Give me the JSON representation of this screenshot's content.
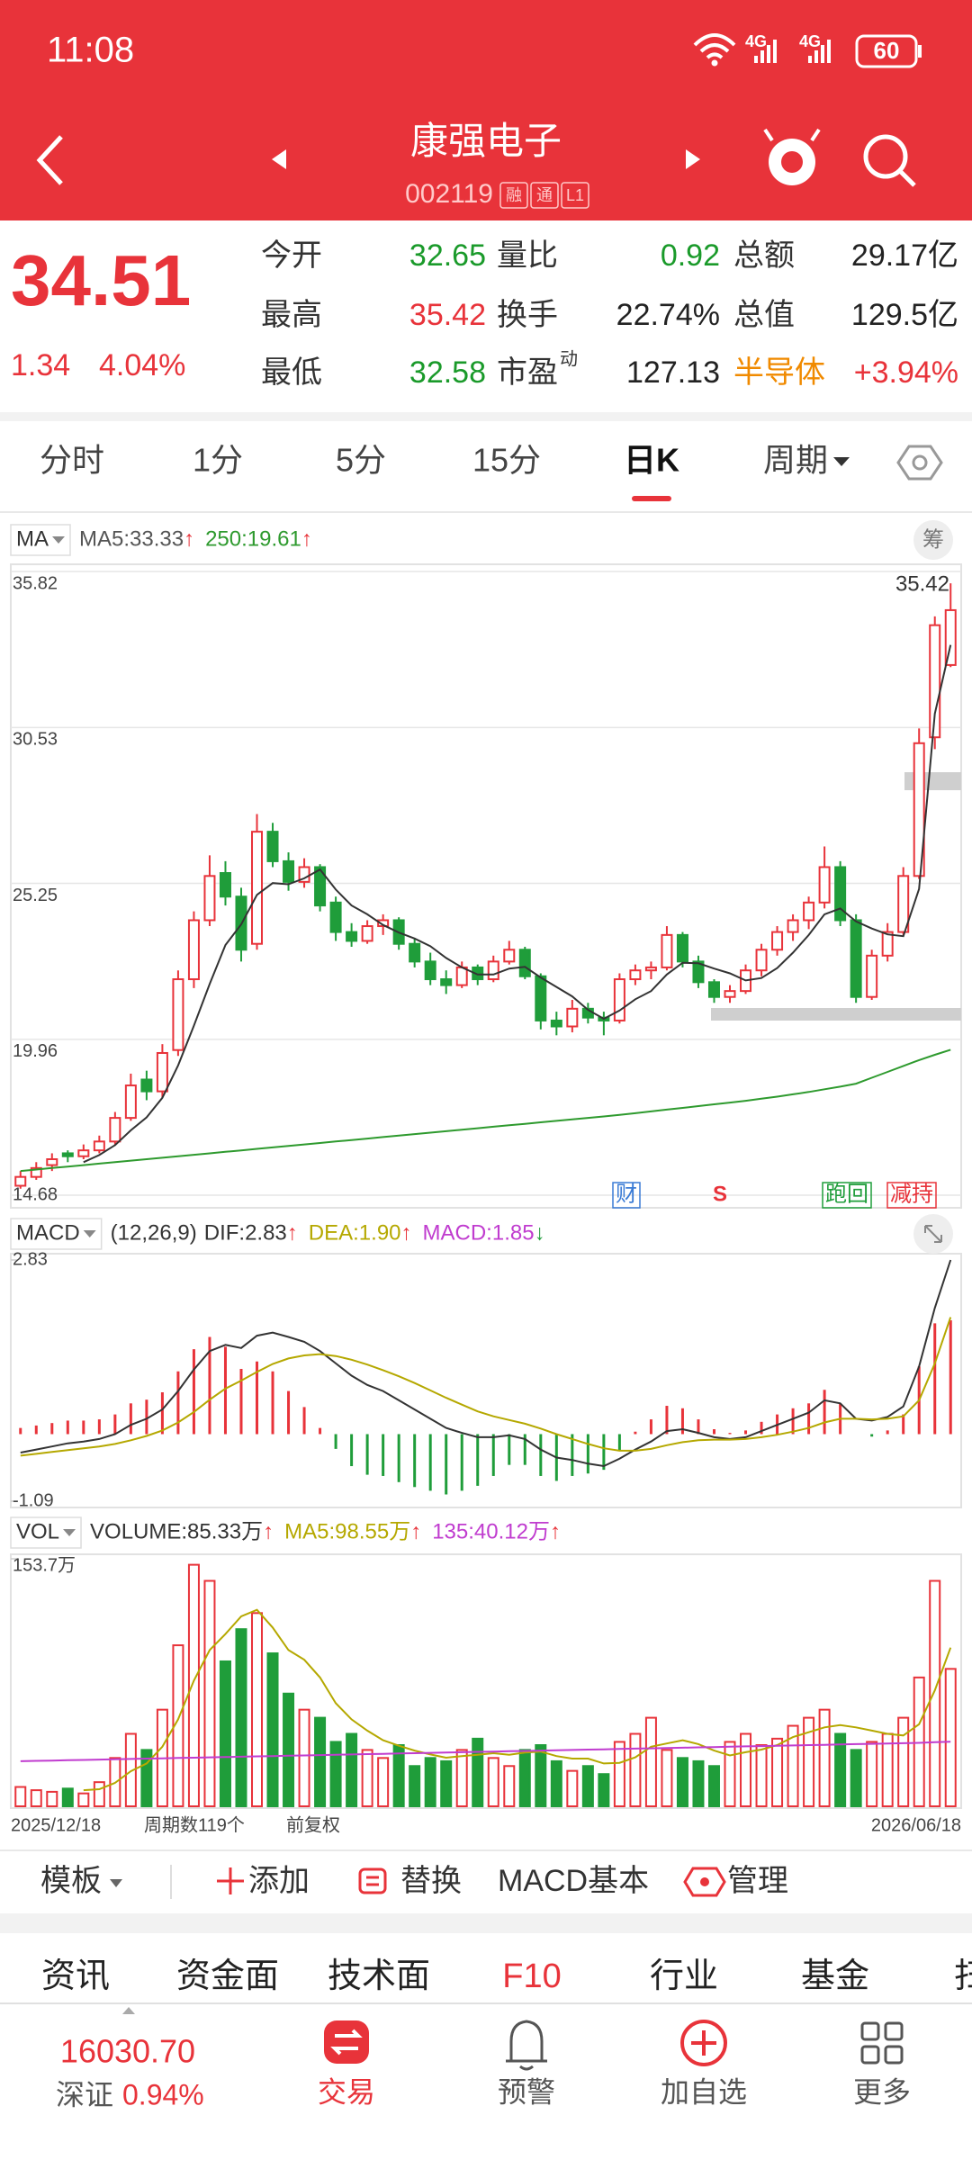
{
  "status": {
    "time": "11:08",
    "network": "4G",
    "battery": "60"
  },
  "header": {
    "title": "康强电子",
    "code": "002119",
    "tags": [
      "融",
      "通",
      "L1"
    ]
  },
  "quote": {
    "price": "34.51",
    "change": "1.34",
    "change_pct": "4.04%",
    "rows": [
      [
        {
          "label": "今开",
          "value": "32.65"
        },
        {
          "label": "量比",
          "value": "0.92"
        },
        {
          "label": "总额",
          "value": "29.17亿"
        }
      ],
      [
        {
          "label": "最高",
          "value": "35.42"
        },
        {
          "label": "换手",
          "value": "22.74%"
        },
        {
          "label": "总值",
          "value": "129.5亿"
        }
      ],
      [
        {
          "label": "最低",
          "value": "32.58"
        },
        {
          "label": "市盈",
          "sup": "动",
          "value": "127.13"
        },
        {
          "label": "半导体",
          "value": "+3.94%"
        }
      ]
    ]
  },
  "tabs": {
    "items": [
      "分时",
      "1分",
      "5分",
      "15分",
      "日K",
      "周期"
    ],
    "active": 4
  },
  "chart_data": [
    {
      "type": "candlestick",
      "legend_label": "MA",
      "legend": [
        {
          "text": "MA5:33.33",
          "arrow": "↑",
          "color": "#555555"
        },
        {
          "text": "250:19.61",
          "arrow": "↑",
          "color": "#2e9a2e"
        }
      ],
      "chip_button": "筹",
      "ylim": [
        14.68,
        35.82
      ],
      "yticks": [
        35.82,
        30.53,
        25.25,
        19.96,
        14.68
      ],
      "grid": true,
      "up_color": "#e8333a",
      "down_color": "#1f9d3a",
      "high_label": "35.42",
      "markers": [
        "财",
        "S",
        "跑回",
        "减持"
      ],
      "candles": [
        [
          15.0,
          15.5,
          14.9,
          15.3
        ],
        [
          15.3,
          15.8,
          15.2,
          15.6
        ],
        [
          15.7,
          16.1,
          15.5,
          15.9
        ],
        [
          16.1,
          16.2,
          15.8,
          16.0
        ],
        [
          16.0,
          16.4,
          15.9,
          16.2
        ],
        [
          16.2,
          16.7,
          16.1,
          16.5
        ],
        [
          16.5,
          17.5,
          16.4,
          17.3
        ],
        [
          17.3,
          18.8,
          17.2,
          18.4
        ],
        [
          18.6,
          18.9,
          17.9,
          18.2
        ],
        [
          18.2,
          19.8,
          18.0,
          19.5
        ],
        [
          19.6,
          22.3,
          19.4,
          22.0
        ],
        [
          22.0,
          24.3,
          21.7,
          24.0
        ],
        [
          24.0,
          26.2,
          23.8,
          25.5
        ],
        [
          25.6,
          26.0,
          24.5,
          24.8
        ],
        [
          24.8,
          25.1,
          22.6,
          23.0
        ],
        [
          23.2,
          27.6,
          23.0,
          27.0
        ],
        [
          27.0,
          27.3,
          25.8,
          26.0
        ],
        [
          26.0,
          26.3,
          25.0,
          25.3
        ],
        [
          25.3,
          26.1,
          25.1,
          25.8
        ],
        [
          25.8,
          25.9,
          24.3,
          24.5
        ],
        [
          24.6,
          24.8,
          23.3,
          23.6
        ],
        [
          23.6,
          23.9,
          23.1,
          23.3
        ],
        [
          23.3,
          24.0,
          23.2,
          23.8
        ],
        [
          23.8,
          24.2,
          23.5,
          24.0
        ],
        [
          24.0,
          24.1,
          23.0,
          23.2
        ],
        [
          23.2,
          23.4,
          22.4,
          22.6
        ],
        [
          22.6,
          22.9,
          21.8,
          22.0
        ],
        [
          22.0,
          22.3,
          21.5,
          21.8
        ],
        [
          21.8,
          22.6,
          21.7,
          22.4
        ],
        [
          22.4,
          22.5,
          21.8,
          22.0
        ],
        [
          22.0,
          22.8,
          21.9,
          22.6
        ],
        [
          22.6,
          23.3,
          22.5,
          23.0
        ],
        [
          23.0,
          23.1,
          22.0,
          22.1
        ],
        [
          22.1,
          22.2,
          20.3,
          20.6
        ],
        [
          20.6,
          20.9,
          20.1,
          20.4
        ],
        [
          20.4,
          21.3,
          20.2,
          21.0
        ],
        [
          21.0,
          21.2,
          20.5,
          20.7
        ],
        [
          20.7,
          20.9,
          20.1,
          20.6
        ],
        [
          20.6,
          22.2,
          20.5,
          22.0
        ],
        [
          22.0,
          22.5,
          21.8,
          22.3
        ],
        [
          22.3,
          22.6,
          22.0,
          22.4
        ],
        [
          22.4,
          23.8,
          22.3,
          23.5
        ],
        [
          23.5,
          23.6,
          22.4,
          22.6
        ],
        [
          22.6,
          22.8,
          21.7,
          21.9
        ],
        [
          21.9,
          22.0,
          21.2,
          21.4
        ],
        [
          21.4,
          21.8,
          21.2,
          21.6
        ],
        [
          21.6,
          22.5,
          21.5,
          22.3
        ],
        [
          22.3,
          23.2,
          22.1,
          23.0
        ],
        [
          23.0,
          23.8,
          22.8,
          23.6
        ],
        [
          23.6,
          24.2,
          23.3,
          24.0
        ],
        [
          24.0,
          24.8,
          23.7,
          24.6
        ],
        [
          24.6,
          26.5,
          24.4,
          25.8
        ],
        [
          25.8,
          26.0,
          23.8,
          24.0
        ],
        [
          24.0,
          24.2,
          21.2,
          21.4
        ],
        [
          21.4,
          23.0,
          21.3,
          22.8
        ],
        [
          22.8,
          23.9,
          22.6,
          23.6
        ],
        [
          23.6,
          25.8,
          23.5,
          25.5
        ],
        [
          25.5,
          30.5,
          25.4,
          30.0
        ],
        [
          30.2,
          34.3,
          29.8,
          34.0
        ],
        [
          32.65,
          35.42,
          32.58,
          34.51
        ]
      ],
      "lines": [
        {
          "color": "#333333",
          "values": [
            null,
            null,
            null,
            null,
            15.8,
            16.04,
            16.38,
            16.88,
            17.32,
            17.98,
            19.08,
            20.42,
            21.84,
            23.16,
            23.86,
            24.86,
            25.26,
            25.22,
            25.42,
            25.72,
            25.04,
            24.5,
            24.2,
            23.84,
            23.58,
            23.38,
            23.12,
            22.72,
            22.4,
            22.16,
            22.16,
            22.36,
            22.42,
            22.06,
            21.74,
            21.42,
            20.96,
            20.66,
            20.94,
            21.32,
            21.6,
            22.16,
            22.56,
            22.54,
            22.36,
            22.2,
            21.96,
            22.04,
            22.38,
            22.9,
            23.5,
            24.2,
            24.4,
            23.96,
            23.72,
            23.52,
            23.46,
            25.06,
            31.0,
            33.33
          ]
        },
        {
          "color": "#2e9a2e",
          "values": [
            15.5,
            15.55,
            15.6,
            15.65,
            15.7,
            15.75,
            15.8,
            15.85,
            15.9,
            15.95,
            16.0,
            16.05,
            16.1,
            16.15,
            16.2,
            16.25,
            16.3,
            16.35,
            16.4,
            16.45,
            16.5,
            16.55,
            16.6,
            16.65,
            16.7,
            16.75,
            16.8,
            16.85,
            16.9,
            16.95,
            17.0,
            17.05,
            17.1,
            17.15,
            17.2,
            17.25,
            17.3,
            17.35,
            17.4,
            17.46,
            17.52,
            17.58,
            17.64,
            17.7,
            17.76,
            17.82,
            17.88,
            17.95,
            18.02,
            18.1,
            18.18,
            18.27,
            18.36,
            18.46,
            18.66,
            18.86,
            19.06,
            19.26,
            19.44,
            19.61
          ]
        }
      ]
    },
    {
      "type": "macd",
      "legend_label": "MACD",
      "params": "(12,26,9)",
      "legend": [
        {
          "text": "DIF:2.83",
          "arrow": "↑",
          "color": "#333333"
        },
        {
          "text": "DEA:1.90",
          "arrow": "↑",
          "color": "#b5a800"
        },
        {
          "text": "MACD:1.85",
          "arrow": "↓",
          "color": "#c03ccf"
        }
      ],
      "ylim": [
        -1.09,
        2.83
      ],
      "yticks": [
        2.83,
        -1.09
      ],
      "up_color": "#e8333a",
      "down_color": "#1f9d3a",
      "dif": [
        -0.3,
        -0.25,
        -0.2,
        -0.15,
        -0.12,
        -0.08,
        0.0,
        0.15,
        0.25,
        0.4,
        0.7,
        1.05,
        1.35,
        1.45,
        1.4,
        1.6,
        1.65,
        1.58,
        1.5,
        1.35,
        1.15,
        0.95,
        0.8,
        0.7,
        0.55,
        0.4,
        0.25,
        0.1,
        0.02,
        -0.05,
        -0.05,
        -0.02,
        -0.08,
        -0.25,
        -0.38,
        -0.42,
        -0.48,
        -0.52,
        -0.4,
        -0.25,
        -0.12,
        0.05,
        0.08,
        0.02,
        -0.05,
        -0.08,
        -0.05,
        0.05,
        0.15,
        0.25,
        0.35,
        0.55,
        0.5,
        0.25,
        0.22,
        0.28,
        0.45,
        1.1,
        2.05,
        2.83
      ],
      "dea": [
        -0.35,
        -0.32,
        -0.29,
        -0.26,
        -0.23,
        -0.2,
        -0.16,
        -0.1,
        -0.03,
        0.06,
        0.19,
        0.36,
        0.56,
        0.74,
        0.87,
        1.01,
        1.14,
        1.23,
        1.28,
        1.3,
        1.27,
        1.21,
        1.13,
        1.04,
        0.94,
        0.83,
        0.71,
        0.59,
        0.48,
        0.37,
        0.29,
        0.23,
        0.17,
        0.09,
        0.0,
        -0.08,
        -0.16,
        -0.23,
        -0.27,
        -0.27,
        -0.24,
        -0.18,
        -0.13,
        -0.1,
        -0.09,
        -0.09,
        -0.08,
        -0.05,
        -0.01,
        0.04,
        0.1,
        0.19,
        0.25,
        0.25,
        0.24,
        0.25,
        0.29,
        0.55,
        1.15,
        1.9
      ],
      "macd": [
        0.1,
        0.14,
        0.18,
        0.22,
        0.22,
        0.24,
        0.32,
        0.5,
        0.56,
        0.68,
        1.02,
        1.38,
        1.58,
        1.42,
        1.06,
        1.18,
        1.02,
        0.7,
        0.44,
        0.1,
        -0.24,
        -0.52,
        -0.66,
        -0.68,
        -0.78,
        -0.86,
        -0.92,
        -0.98,
        -0.92,
        -0.84,
        -0.68,
        -0.5,
        -0.5,
        -0.68,
        -0.76,
        -0.68,
        -0.64,
        -0.58,
        -0.26,
        0.04,
        0.24,
        0.46,
        0.42,
        0.24,
        0.08,
        0.02,
        0.06,
        0.2,
        0.32,
        0.42,
        0.5,
        0.72,
        0.5,
        0.0,
        -0.04,
        0.06,
        0.32,
        1.1,
        1.8,
        1.85
      ]
    },
    {
      "type": "volume",
      "legend_label": "VOL",
      "legend": [
        {
          "text": "VOLUME:85.33万",
          "arrow": "↑",
          "color": "#333333"
        },
        {
          "text": "MA5:98.55万",
          "arrow": "↑",
          "color": "#b5a800"
        },
        {
          "text": "135:40.12万",
          "arrow": "↑",
          "color": "#c03ccf"
        }
      ],
      "ylim": [
        0,
        153.7
      ],
      "yticks": [
        {
          "value": 153.7,
          "label": "153.7万"
        }
      ],
      "categories": [
        "2025/12/18",
        null,
        null,
        null,
        null,
        null,
        null,
        null,
        null,
        null,
        null,
        null,
        null,
        null,
        null,
        null,
        null,
        null,
        null,
        null,
        null,
        null,
        null,
        null,
        null,
        null,
        null,
        null,
        null,
        null,
        null,
        null,
        null,
        null,
        null,
        null,
        null,
        null,
        null,
        null,
        null,
        null,
        null,
        null,
        null,
        null,
        null,
        null,
        null,
        null,
        null,
        null,
        null,
        null,
        null,
        null,
        null,
        null,
        null,
        "2026/06/18"
      ],
      "values": [
        12,
        10,
        9,
        11,
        8,
        15,
        30,
        45,
        35,
        60,
        100,
        150,
        140,
        90,
        110,
        120,
        95,
        70,
        60,
        55,
        40,
        45,
        35,
        30,
        38,
        25,
        30,
        28,
        35,
        42,
        30,
        25,
        35,
        38,
        28,
        22,
        25,
        20,
        40,
        45,
        55,
        35,
        30,
        28,
        25,
        40,
        45,
        38,
        42,
        50,
        55,
        60,
        45,
        35,
        40,
        45,
        55,
        80,
        140,
        85.33
      ],
      "ma5": [
        null,
        null,
        null,
        null,
        10,
        10.6,
        14.6,
        21.8,
        26.6,
        37,
        54,
        78,
        97,
        107,
        118,
        122,
        111,
        97,
        91,
        80,
        64,
        54,
        47,
        41,
        37.6,
        34.6,
        32.2,
        30.2,
        31.2,
        32,
        33,
        32,
        33.4,
        34,
        31.2,
        29.6,
        29.6,
        26.6,
        27,
        30.4,
        37,
        39,
        41,
        38.6,
        34.6,
        31.6,
        33.6,
        35.2,
        38,
        43,
        46,
        49,
        50.4,
        49,
        47,
        45,
        44,
        51,
        72,
        98.55
      ],
      "ma135": [
        28.0,
        28.2,
        28.4,
        28.6,
        28.8,
        29.0,
        29.2,
        29.4,
        29.6,
        29.8,
        30.0,
        30.2,
        30.4,
        30.6,
        30.8,
        31.0,
        31.2,
        31.4,
        31.6,
        31.8,
        32.0,
        32.2,
        32.4,
        32.6,
        32.8,
        33.0,
        33.2,
        33.4,
        33.6,
        33.8,
        34.0,
        34.2,
        34.4,
        34.6,
        34.8,
        35.0,
        35.2,
        35.4,
        35.6,
        35.8,
        36.0,
        36.2,
        36.4,
        36.6,
        36.8,
        37.0,
        37.2,
        37.4,
        37.6,
        37.8,
        38.0,
        38.2,
        38.4,
        38.6,
        38.8,
        39.0,
        39.2,
        39.4,
        39.8,
        40.12
      ]
    }
  ],
  "footer_info": {
    "period_count": "周期数119个",
    "adjust": "前复权"
  },
  "toolbar": [
    "模板",
    "添加",
    "替换",
    "MACD基本",
    "管理"
  ],
  "sections": [
    "资讯",
    "资金面",
    "技术面",
    "F10",
    "行业",
    "基金",
    "扫"
  ],
  "nav": {
    "index_value": "16030.70",
    "index_name": "深证",
    "index_pct": "0.94%",
    "items": [
      "交易",
      "预警",
      "加自选",
      "更多"
    ]
  }
}
